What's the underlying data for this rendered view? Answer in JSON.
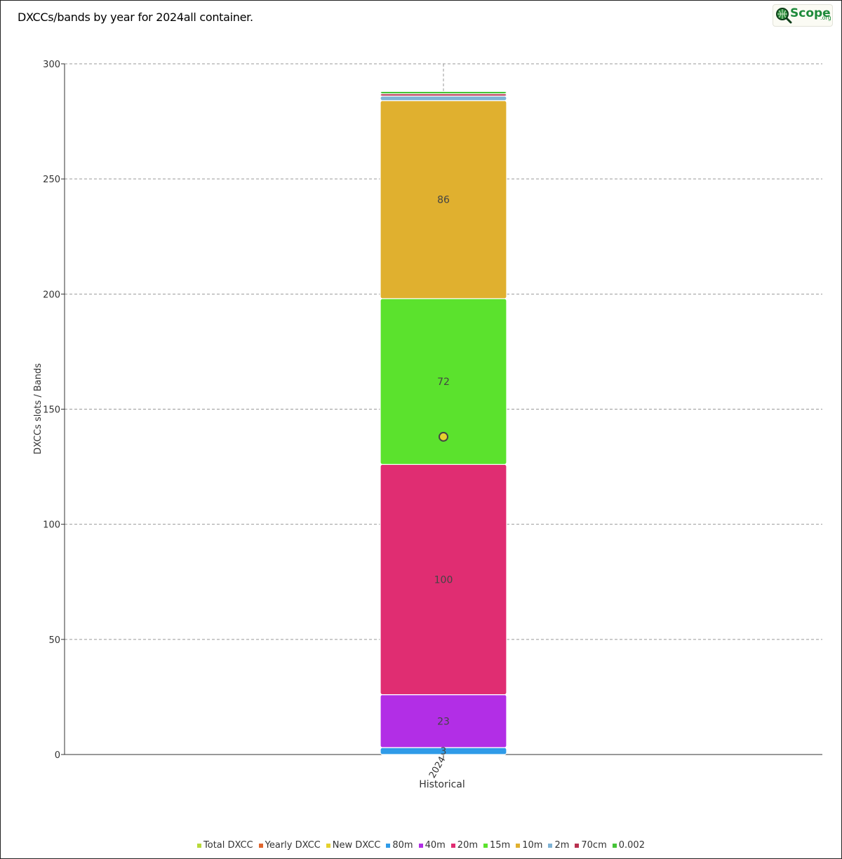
{
  "page": {
    "title": "DXCCs/bands by year for 2024all container.",
    "logo": {
      "text": "Scope",
      "suffix": ".org"
    }
  },
  "chart_data": {
    "type": "bar",
    "stacked": true,
    "title": "DXCCs/bands by year for 2024all container.",
    "xlabel": "Historical",
    "ylabel": "DXCCs slots / Bands",
    "ylim": [
      0,
      300
    ],
    "yticks": [
      0,
      50,
      100,
      150,
      200,
      250,
      300
    ],
    "grid": true,
    "legend_position": "bottom",
    "categories": [
      "2024"
    ],
    "series": [
      {
        "name": "80m",
        "values": [
          3
        ],
        "color": "#2f9be8",
        "label": "3"
      },
      {
        "name": "40m",
        "values": [
          23
        ],
        "color": "#b22ee6",
        "label": "23"
      },
      {
        "name": "20m",
        "values": [
          100
        ],
        "color": "#e02d72",
        "label": "100"
      },
      {
        "name": "15m",
        "values": [
          72
        ],
        "color": "#5be22d",
        "label": "72"
      },
      {
        "name": "10m",
        "values": [
          86
        ],
        "color": "#e0b02f",
        "label": "86"
      },
      {
        "name": "2m",
        "values": [
          2
        ],
        "color": "#7fb3d5",
        "label": ""
      },
      {
        "name": "70cm",
        "values": [
          1
        ],
        "color": "#b8304f",
        "label": ""
      },
      {
        "name": "0.002",
        "values": [
          1
        ],
        "color": "#45c437",
        "label": ""
      }
    ],
    "points": [
      {
        "name": "New DXCC",
        "values": [
          138
        ],
        "color": "#e5d12e"
      }
    ],
    "legend": [
      {
        "name": "Total DXCC",
        "color": "#b8d93a"
      },
      {
        "name": "Yearly DXCC",
        "color": "#e0662d"
      },
      {
        "name": "New DXCC",
        "color": "#e5d12e"
      },
      {
        "name": "80m",
        "color": "#2f9be8"
      },
      {
        "name": "40m",
        "color": "#b22ee6"
      },
      {
        "name": "20m",
        "color": "#e02d72"
      },
      {
        "name": "15m",
        "color": "#5be22d"
      },
      {
        "name": "10m",
        "color": "#e0b02f"
      },
      {
        "name": "2m",
        "color": "#7fb3d5"
      },
      {
        "name": "70cm",
        "color": "#b8304f"
      },
      {
        "name": "0.002",
        "color": "#45c437"
      }
    ]
  }
}
